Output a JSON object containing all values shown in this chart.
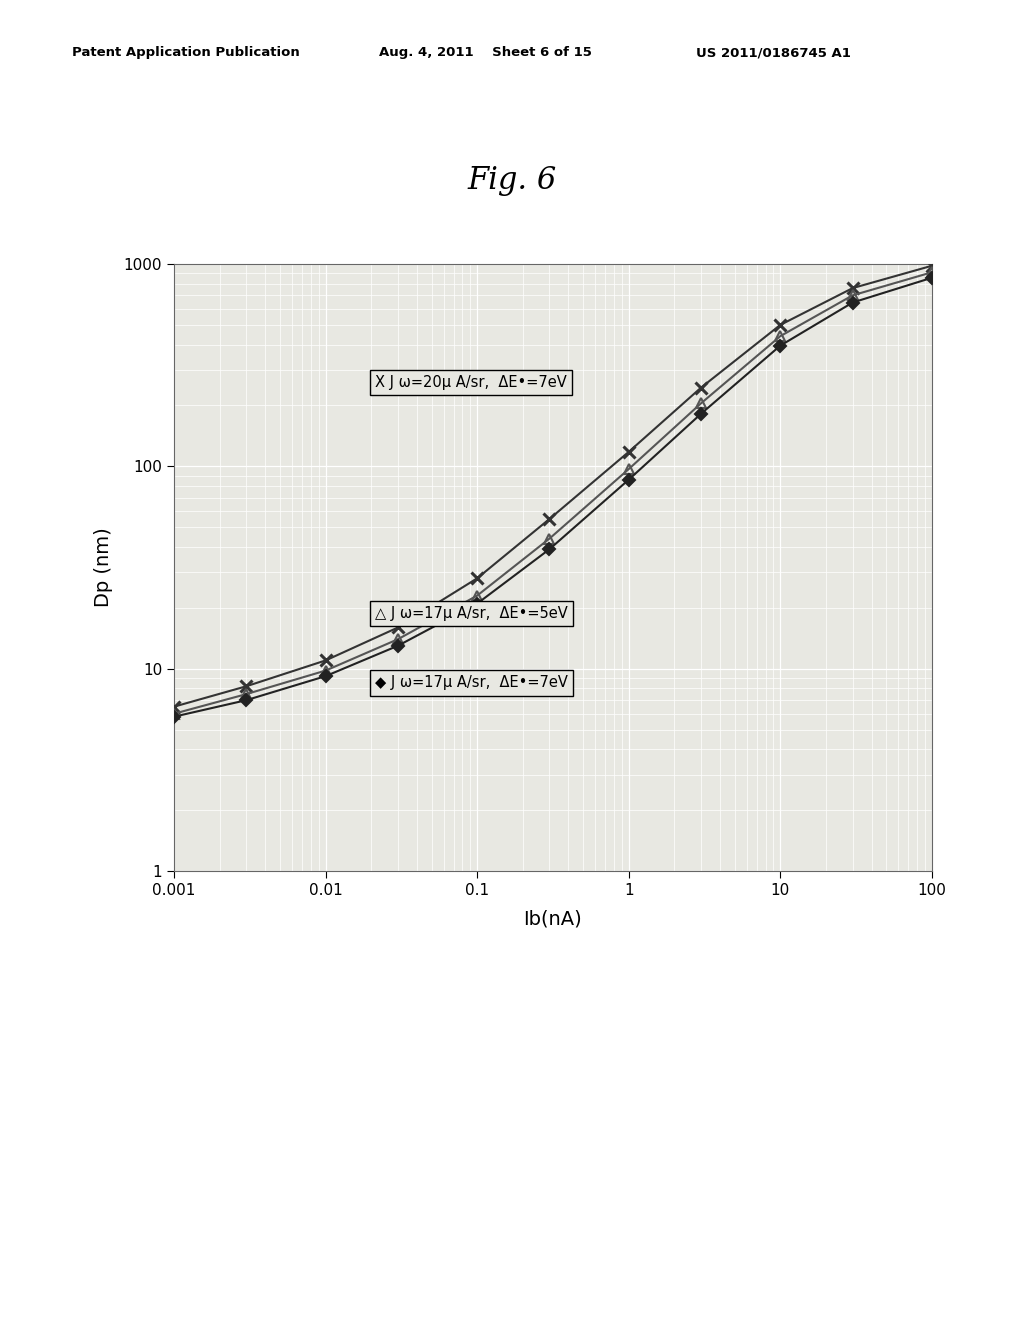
{
  "title": "Fig. 6",
  "xlabel": "Ib(nA)",
  "ylabel": "Dp (nm)",
  "header_left": "Patent Application Publication",
  "header_mid": "Aug. 4, 2011    Sheet 6 of 15",
  "header_right": "US 2011/0186745 A1",
  "xlim": [
    0.001,
    100
  ],
  "ylim": [
    1,
    1000
  ],
  "plot_bg_color": "#e8e8e2",
  "series": [
    {
      "label": "X J w=20 uA/sr,  DE-=7eV",
      "marker": "x",
      "color": "#333333",
      "x": [
        0.001,
        0.003,
        0.01,
        0.03,
        0.1,
        0.3,
        1.0,
        3.0,
        10.0,
        30.0,
        100.0
      ],
      "y": [
        6.5,
        8.2,
        11.0,
        16.0,
        28.0,
        55.0,
        118.0,
        245.0,
        500.0,
        760.0,
        980.0
      ]
    },
    {
      "label": "tri J w=17 uA/sr,  DE-=5eV",
      "marker": "^",
      "color": "#555555",
      "x": [
        0.001,
        0.003,
        0.01,
        0.03,
        0.1,
        0.3,
        1.0,
        3.0,
        10.0,
        30.0,
        100.0
      ],
      "y": [
        6.0,
        7.5,
        9.8,
        14.0,
        23.0,
        44.0,
        97.0,
        205.0,
        440.0,
        700.0,
        910.0
      ]
    },
    {
      "label": "dia J w=17 uA/sr,  DE-=7eV",
      "marker": "D",
      "color": "#222222",
      "x": [
        0.001,
        0.003,
        0.01,
        0.03,
        0.1,
        0.3,
        1.0,
        3.0,
        10.0,
        30.0,
        100.0
      ],
      "y": [
        5.8,
        7.0,
        9.2,
        13.0,
        21.0,
        39.0,
        86.0,
        182.0,
        395.0,
        645.0,
        855.0
      ]
    }
  ],
  "legend1_text": "J ω=20μ A/sr，  ΔE•=7eV",
  "legend2_text": "J ω=17μ A/sr，  ΔE•=5eV",
  "legend3_text": "J ω=17μ A/sr，  ΔE•=7eV"
}
